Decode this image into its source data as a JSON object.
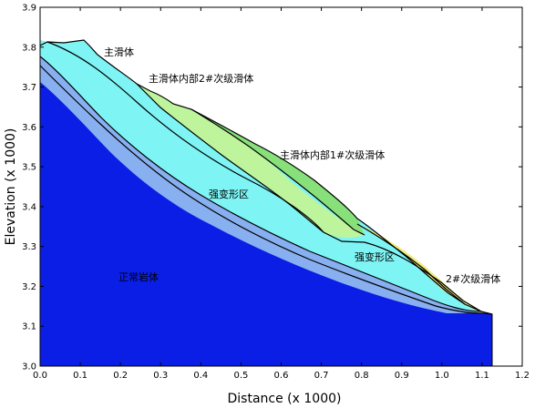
{
  "chart": {
    "xlabel": "Distance (x 1000)",
    "ylabel": "Elevation (x 1000)",
    "xlim": [
      0.0,
      1.2
    ],
    "ylim": [
      3.0,
      3.9
    ],
    "x_ticks": [
      "0.0",
      "0.1",
      "0.2",
      "0.3",
      "0.4",
      "0.5",
      "0.6",
      "0.7",
      "0.8",
      "0.9",
      "1.0",
      "1.1",
      "1.2"
    ],
    "y_ticks": [
      "3.0",
      "3.1",
      "3.2",
      "3.3",
      "3.4",
      "3.5",
      "3.6",
      "3.7",
      "3.8",
      "3.9"
    ]
  },
  "zones": [
    {
      "id": "bedrock",
      "label": "正常岩体",
      "color": "#0a1ee6"
    },
    {
      "id": "strong-deform-lower",
      "label": "强变形区",
      "color": "#88b0f0"
    },
    {
      "id": "main-slide-body",
      "label": "主滑体",
      "color": "#7ff4f4"
    },
    {
      "id": "inner-slide-2",
      "label": "主滑体内部2#次级滑体",
      "color": "#bdf49c"
    },
    {
      "id": "inner-slide-1",
      "label": "主滑体内部1#次级滑体",
      "color": "#87e07a"
    },
    {
      "id": "strong-deform-upper",
      "label": "强变形区",
      "color": "#7ff4f4"
    },
    {
      "id": "secondary-slide-2",
      "label": "2#次级滑体",
      "color": "#f0ec82"
    }
  ]
}
